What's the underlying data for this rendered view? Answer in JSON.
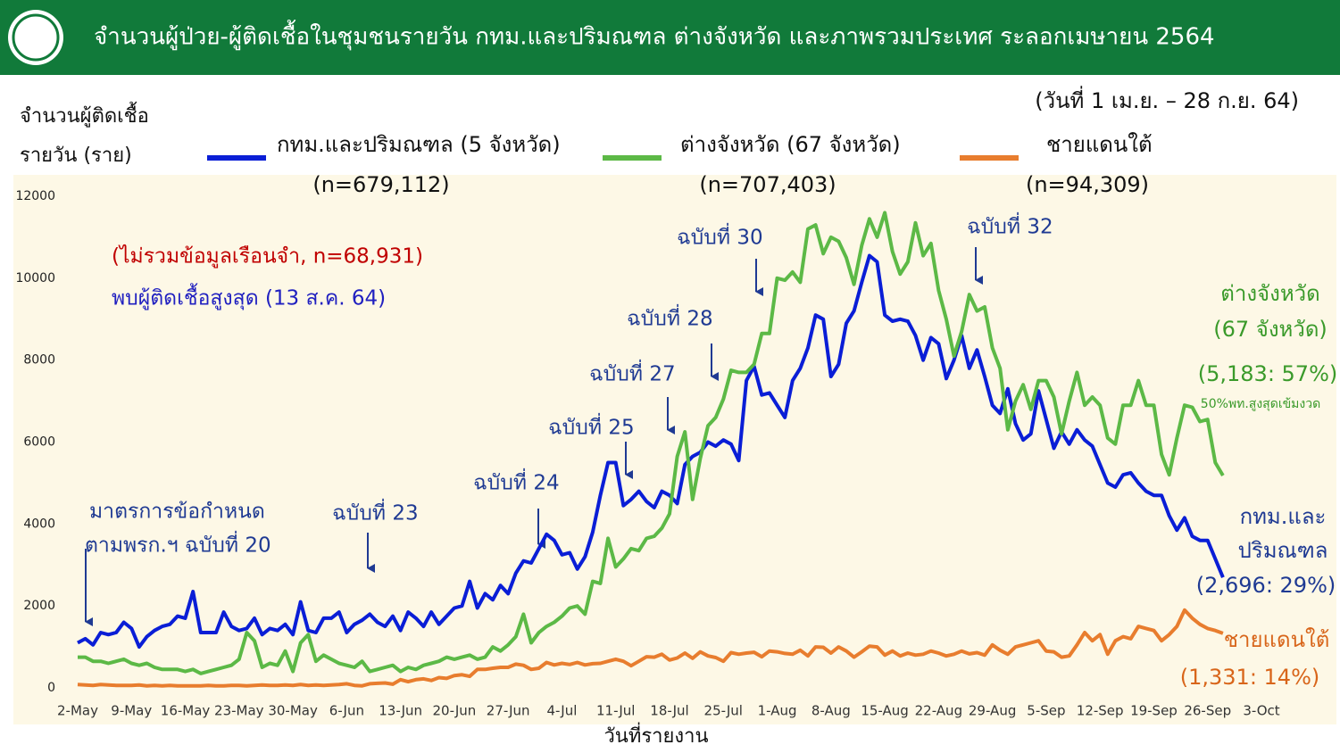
{
  "chart_data": {
    "type": "line",
    "title": "จำนวนผู้ป่วย-ผู้ติดเชื้อในชุมชนรายวัน กทม.และปริมณฑล ต่างจังหวัด และภาพรวมประเทศ ระลอกเมษายน 2564",
    "subtitle": "(วันที่ 1 เม.ย. – 28 ก.ย. 64)",
    "y_axis_label": [
      "จำนวนผู้ติดเชื้อ",
      "รายวัน (ราย)"
    ],
    "x_axis_label": "วันที่รายงาน",
    "ylim": [
      0,
      12000
    ],
    "yticks": [
      0,
      2000,
      4000,
      6000,
      8000,
      10000,
      12000
    ],
    "categories": [
      "2-May",
      null,
      null,
      null,
      null,
      null,
      null,
      "9-May",
      null,
      null,
      null,
      null,
      null,
      null,
      "16-May",
      null,
      null,
      null,
      null,
      null,
      null,
      "23-May",
      null,
      null,
      null,
      null,
      null,
      null,
      "30-May",
      null,
      null,
      null,
      null,
      null,
      null,
      "6-Jun",
      null,
      null,
      null,
      null,
      null,
      null,
      "13-Jun",
      null,
      null,
      null,
      null,
      null,
      null,
      "20-Jun",
      null,
      null,
      null,
      null,
      null,
      null,
      "27-Jun",
      null,
      null,
      null,
      null,
      null,
      null,
      "4-Jul",
      null,
      null,
      null,
      null,
      null,
      null,
      "11-Jul",
      null,
      null,
      null,
      null,
      null,
      null,
      "18-Jul",
      null,
      null,
      null,
      null,
      null,
      null,
      "25-Jul",
      null,
      null,
      null,
      null,
      null,
      null,
      "1-Aug",
      null,
      null,
      null,
      null,
      null,
      null,
      "8-Aug",
      null,
      null,
      null,
      null,
      null,
      null,
      "15-Aug",
      null,
      null,
      null,
      null,
      null,
      null,
      "22-Aug",
      null,
      null,
      null,
      null,
      null,
      null,
      "29-Aug",
      null,
      null,
      null,
      null,
      null,
      null,
      "5-Sep",
      null,
      null,
      null,
      null,
      null,
      null,
      "12-Sep",
      null,
      null,
      null,
      null,
      null,
      null,
      "19-Sep",
      null,
      null,
      null,
      null,
      null,
      null,
      "26-Sep",
      null,
      null,
      null,
      null,
      null,
      null,
      "3-Oct"
    ],
    "series": [
      {
        "name": "กทม.และปริมณฑล (5 จังหวัด)",
        "color": "#0a1ed6",
        "n_label": "(n=679,112)",
        "end_labels": [
          "กทม.และ",
          "ปริมณฑล",
          "(2,696: 29%)"
        ],
        "values": [
          1100,
          1200,
          1050,
          1350,
          1300,
          1350,
          1600,
          1450,
          1000,
          1250,
          1400,
          1500,
          1550,
          1750,
          1700,
          2350,
          1350,
          1350,
          1350,
          1850,
          1500,
          1400,
          1450,
          1700,
          1300,
          1450,
          1400,
          1550,
          1300,
          2100,
          1400,
          1350,
          1700,
          1700,
          1850,
          1350,
          1550,
          1650,
          1800,
          1600,
          1500,
          1750,
          1400,
          1850,
          1700,
          1500,
          1850,
          1550,
          1750,
          1950,
          2000,
          2600,
          1950,
          2300,
          2150,
          2500,
          2300,
          2800,
          3100,
          3050,
          3400,
          3750,
          3600,
          3250,
          3300,
          2900,
          3200,
          3800,
          4700,
          5500,
          5500,
          4450,
          4600,
          4800,
          4550,
          4400,
          4800,
          4700,
          4500,
          5450,
          5650,
          5750,
          6000,
          5900,
          6050,
          5950,
          5550,
          7500,
          7850,
          7150,
          7200,
          6900,
          6600,
          7500,
          7800,
          8300,
          9100,
          9000,
          7600,
          7900,
          8900,
          9200,
          9900,
          10550,
          10400,
          9100,
          8950,
          9000,
          8950,
          8600,
          8000,
          8550,
          8400,
          7550,
          8000,
          8600,
          7800,
          8250,
          7600,
          6900,
          6700,
          7300,
          6450,
          6050,
          6200,
          7250,
          6550,
          5850,
          6250,
          5950,
          6300,
          6050,
          5900,
          5450,
          5000,
          4900,
          5200,
          5250,
          5000,
          4800,
          4700,
          4700,
          4200,
          3850,
          4150,
          3700,
          3600,
          3600,
          3150,
          2696,
          null,
          null,
          null,
          null,
          null
        ]
      },
      {
        "name": "ต่างจังหวัด (67 จังหวัด)",
        "color": "#5cb946",
        "n_label": "(n=707,403)",
        "end_labels": [
          "ต่างจังหวัด",
          "(67 จังหวัด)",
          "(5,183: 57%)",
          "50%พท.สูงสุดเข้มงวด"
        ],
        "values": [
          750,
          750,
          650,
          650,
          600,
          650,
          700,
          600,
          550,
          600,
          500,
          450,
          450,
          450,
          400,
          450,
          350,
          400,
          450,
          500,
          550,
          700,
          1350,
          1150,
          500,
          600,
          550,
          900,
          400,
          1100,
          1300,
          650,
          800,
          700,
          600,
          550,
          500,
          650,
          400,
          450,
          500,
          550,
          400,
          500,
          450,
          550,
          600,
          650,
          750,
          700,
          750,
          800,
          700,
          750,
          1000,
          900,
          1050,
          1250,
          1800,
          1100,
          1350,
          1500,
          1600,
          1750,
          1950,
          2000,
          1800,
          2600,
          2550,
          3650,
          2950,
          3150,
          3400,
          3350,
          3650,
          3700,
          3900,
          4250,
          5650,
          6250,
          4600,
          5600,
          6400,
          6600,
          7050,
          7750,
          7700,
          7700,
          7900,
          8650,
          8650,
          10000,
          9950,
          10150,
          9900,
          11200,
          11300,
          10600,
          11000,
          10900,
          10500,
          9850,
          10800,
          11450,
          11000,
          11600,
          10650,
          10100,
          10400,
          11350,
          10550,
          10850,
          9700,
          9000,
          8100,
          8700,
          9600,
          9200,
          9300,
          8300,
          7800,
          6300,
          7000,
          7400,
          6800,
          7500,
          7500,
          7100,
          6200,
          7000,
          7700,
          6900,
          7100,
          6900,
          6100,
          5950,
          6900,
          6900,
          7500,
          6900,
          6900,
          5700,
          5200,
          6100,
          6900,
          6850,
          6500,
          6550,
          5500,
          5183,
          null,
          null,
          null,
          null,
          null
        ]
      },
      {
        "name": "ชายแดนใต้",
        "color": "#e87d2e",
        "n_label": "(n=94,309)",
        "end_labels": [
          "ชายแดนใต้",
          "(1,331: 14%)"
        ],
        "values": [
          80,
          70,
          60,
          80,
          70,
          60,
          60,
          60,
          70,
          50,
          60,
          50,
          60,
          50,
          50,
          50,
          50,
          60,
          50,
          50,
          60,
          60,
          50,
          60,
          70,
          60,
          60,
          70,
          60,
          80,
          60,
          70,
          60,
          70,
          80,
          100,
          60,
          50,
          100,
          110,
          120,
          90,
          200,
          150,
          200,
          220,
          180,
          250,
          230,
          300,
          320,
          280,
          450,
          450,
          480,
          500,
          500,
          580,
          550,
          450,
          480,
          620,
          560,
          600,
          570,
          620,
          560,
          590,
          600,
          650,
          700,
          650,
          540,
          650,
          760,
          750,
          820,
          680,
          730,
          850,
          720,
          880,
          780,
          740,
          650,
          860,
          820,
          850,
          870,
          760,
          900,
          880,
          840,
          820,
          920,
          780,
          1000,
          990,
          850,
          1000,
          900,
          750,
          880,
          1020,
          1000,
          800,
          900,
          780,
          850,
          800,
          820,
          900,
          850,
          780,
          820,
          900,
          830,
          860,
          800,
          1050,
          920,
          820,
          1000,
          1050,
          1100,
          1150,
          900,
          880,
          750,
          780,
          1050,
          1350,
          1150,
          1300,
          820,
          1150,
          1250,
          1200,
          1500,
          1450,
          1400,
          1150,
          1300,
          1500,
          1900,
          1700,
          1550,
          1450,
          1400,
          1331,
          null,
          null,
          null,
          null,
          null
        ]
      }
    ],
    "annotations": [
      "(ไม่รวมข้อมูลเรือนจำ, n=68,931)",
      "พบผู้ติดเชื้อสูงสุด (13 ส.ค. 64)",
      "มาตรการข้อกำหนด",
      "ตามพรก.ฯ ฉบับที่ 20",
      "ฉบับที่ 23",
      "ฉบับที่ 24",
      "ฉบับที่ 25",
      "ฉบับที่ 27",
      "ฉบับที่ 28",
      "ฉบับที่ 30",
      "ฉบับที่ 32"
    ]
  }
}
